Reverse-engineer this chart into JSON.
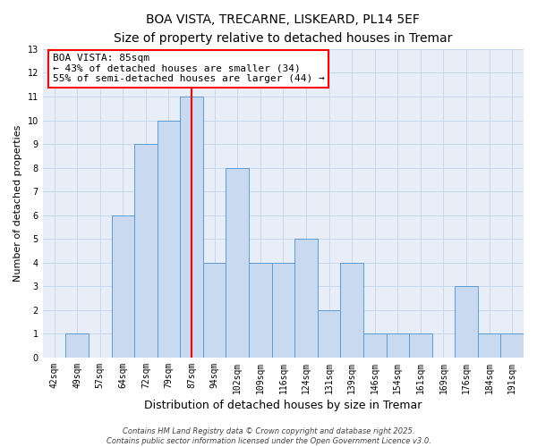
{
  "title": "BOA VISTA, TRECARNE, LISKEARD, PL14 5EF",
  "subtitle": "Size of property relative to detached houses in Tremar",
  "xlabel": "Distribution of detached houses by size in Tremar",
  "ylabel": "Number of detached properties",
  "categories": [
    "42sqm",
    "49sqm",
    "57sqm",
    "64sqm",
    "72sqm",
    "79sqm",
    "87sqm",
    "94sqm",
    "102sqm",
    "109sqm",
    "116sqm",
    "124sqm",
    "131sqm",
    "139sqm",
    "146sqm",
    "154sqm",
    "161sqm",
    "169sqm",
    "176sqm",
    "184sqm",
    "191sqm"
  ],
  "values": [
    0,
    1,
    0,
    6,
    9,
    10,
    11,
    4,
    8,
    4,
    4,
    5,
    2,
    4,
    1,
    1,
    1,
    0,
    3,
    1,
    1
  ],
  "bar_color": "#c9d9f0",
  "bar_edge_color": "#5b9bd5",
  "red_line_index": 6,
  "red_line_label": "BOA VISTA: 85sqm",
  "annotation_line1": "← 43% of detached houses are smaller (34)",
  "annotation_line2": "55% of semi-detached houses are larger (44) →",
  "ylim": [
    0,
    13
  ],
  "yticks": [
    0,
    1,
    2,
    3,
    4,
    5,
    6,
    7,
    8,
    9,
    10,
    11,
    12,
    13
  ],
  "grid_color": "#c8d8ed",
  "background_color": "#e8eef8",
  "footer_line1": "Contains HM Land Registry data © Crown copyright and database right 2025.",
  "footer_line2": "Contains public sector information licensed under the Open Government Licence v3.0.",
  "title_fontsize": 10,
  "subtitle_fontsize": 9.5,
  "xlabel_fontsize": 9,
  "ylabel_fontsize": 8,
  "tick_fontsize": 7,
  "annotation_fontsize": 8,
  "footer_fontsize": 6
}
